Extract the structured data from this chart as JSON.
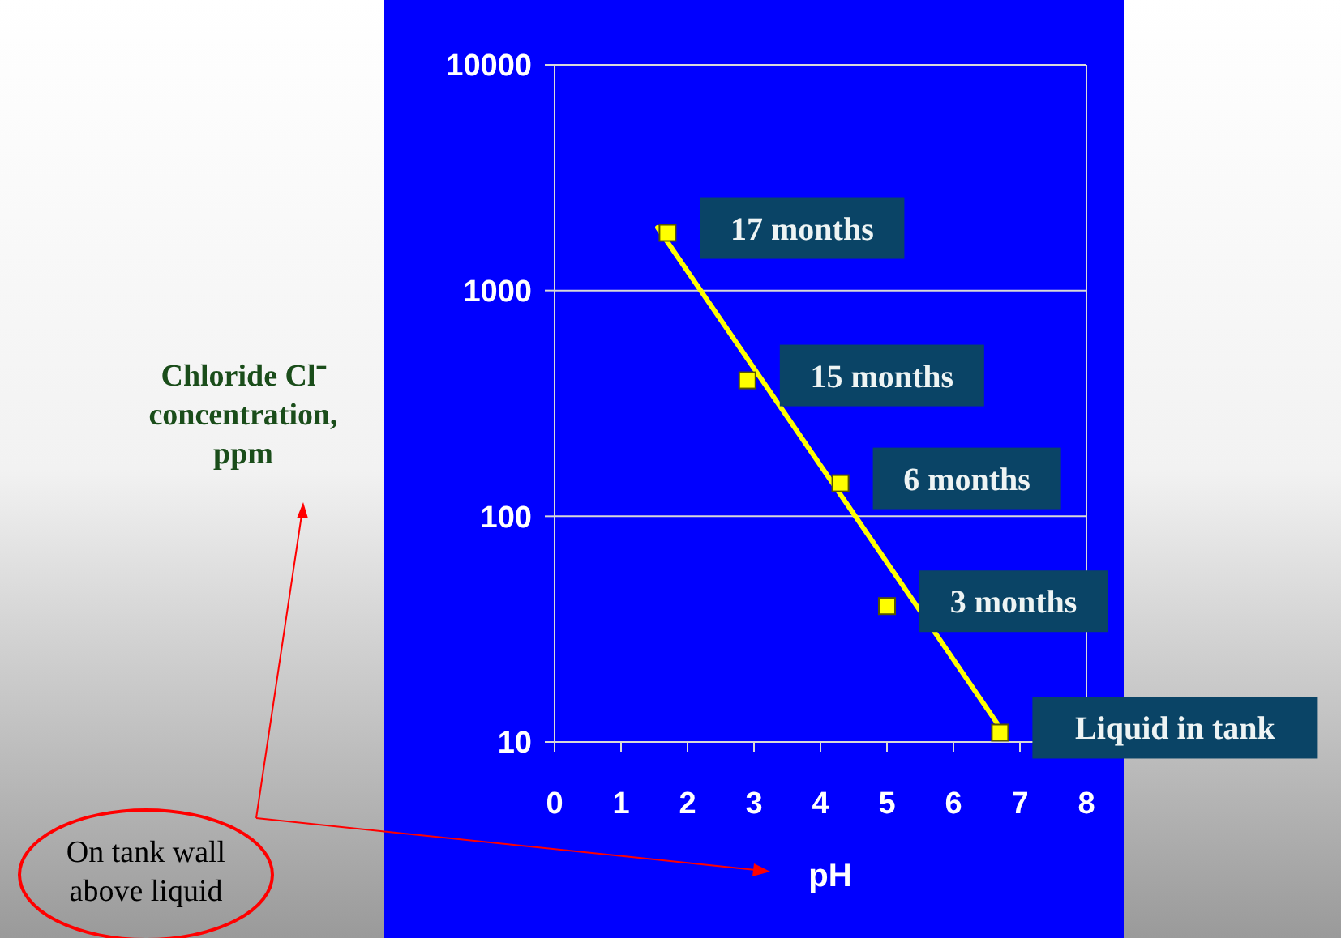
{
  "chart_data": {
    "type": "scatter",
    "xlabel": "pH",
    "ylabel": "Chloride Cl⁻ concentration, ppm",
    "log": "y",
    "grid": "y",
    "xlim": [
      0,
      8
    ],
    "xticks": [
      0,
      1,
      2,
      3,
      4,
      5,
      6,
      7,
      8
    ],
    "ylim": [
      10,
      10000
    ],
    "yticks": [
      10,
      100,
      1000,
      10000
    ],
    "series": [
      {
        "type": "line",
        "color": "#ffff00",
        "x": [
          1.55,
          6.8
        ],
        "values": [
          1900,
          10.5
        ],
        "line_style": "solid",
        "marker": "none"
      },
      {
        "color": "#ffff00",
        "marker": "square",
        "x": [
          1.7,
          2.9,
          4.3,
          5,
          6.7
        ],
        "values": [
          1800,
          400,
          140,
          40,
          11
        ]
      }
    ],
    "annotations": [
      {
        "text": "17 months",
        "x": 1.7,
        "y": 1800
      },
      {
        "text": "15 months",
        "x": 2.9,
        "y": 400
      },
      {
        "text": "6 months",
        "x": 4.3,
        "y": 140
      },
      {
        "text": "3 months",
        "x": 5,
        "y": 40
      },
      {
        "text": "Liquid in tank",
        "x": 6.7,
        "y": 11
      },
      "On tank wall above liquid"
    ]
  }
}
